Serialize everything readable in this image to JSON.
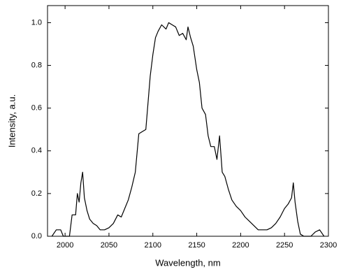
{
  "chart_data": {
    "type": "line",
    "x_label": "Wavelength, nm",
    "y_label": "Intensity, a.u.",
    "xlim": [
      1980,
      2300
    ],
    "ylim": [
      0,
      1.08
    ],
    "xticks": [
      2000,
      2050,
      2100,
      2150,
      2200,
      2250,
      2300
    ],
    "yticks": [
      {
        "value": 0,
        "label": "0.0"
      },
      {
        "value": 0.2,
        "label": "0.2"
      },
      {
        "value": 0.4,
        "label": "0.4"
      },
      {
        "value": 0.6,
        "label": "0.6"
      },
      {
        "value": 0.8,
        "label": "0.8"
      },
      {
        "value": 1,
        "label": "1.0"
      }
    ],
    "grid": false,
    "series": [
      {
        "color": "#000000",
        "x": [
          1985,
          1990,
          1995,
          1998,
          2005,
          2008,
          2012,
          2014,
          2016,
          2018,
          2020,
          2022,
          2025,
          2028,
          2032,
          2036,
          2040,
          2045,
          2050,
          2055,
          2060,
          2064,
          2068,
          2072,
          2076,
          2080,
          2084,
          2088,
          2092,
          2094,
          2097,
          2100,
          2103,
          2106,
          2110,
          2115,
          2118,
          2122,
          2126,
          2130,
          2134,
          2138,
          2140,
          2143,
          2146,
          2150,
          2153,
          2156,
          2160,
          2163,
          2166,
          2170,
          2173,
          2176,
          2179,
          2182,
          2186,
          2190,
          2195,
          2200,
          2205,
          2210,
          2215,
          2220,
          2225,
          2230,
          2235,
          2240,
          2245,
          2250,
          2254,
          2258,
          2260,
          2262,
          2265,
          2268,
          2272,
          2280,
          2285,
          2290,
          2295
        ],
        "values": [
          0,
          0.03,
          0.03,
          0,
          0,
          0.1,
          0.1,
          0.2,
          0.16,
          0.25,
          0.3,
          0.18,
          0.12,
          0.08,
          0.06,
          0.05,
          0.03,
          0.03,
          0.04,
          0.06,
          0.1,
          0.09,
          0.13,
          0.17,
          0.23,
          0.3,
          0.48,
          0.49,
          0.5,
          0.6,
          0.75,
          0.85,
          0.93,
          0.96,
          0.99,
          0.97,
          1,
          0.99,
          0.98,
          0.94,
          0.95,
          0.92,
          0.98,
          0.93,
          0.89,
          0.78,
          0.72,
          0.6,
          0.57,
          0.47,
          0.42,
          0.42,
          0.36,
          0.47,
          0.3,
          0.28,
          0.22,
          0.17,
          0.14,
          0.12,
          0.09,
          0.07,
          0.05,
          0.03,
          0.03,
          0.03,
          0.04,
          0.06,
          0.09,
          0.13,
          0.15,
          0.18,
          0.25,
          0.16,
          0.07,
          0.01,
          0,
          0,
          0.02,
          0.03,
          0
        ]
      }
    ]
  }
}
